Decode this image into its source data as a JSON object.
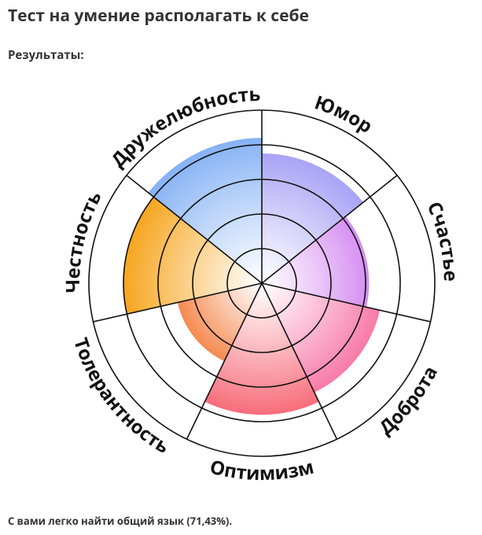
{
  "header": {
    "title": "Тест на умение располагать к себе",
    "subtitle": "Результаты:"
  },
  "chart_data": {
    "type": "polar",
    "categories": [
      "Юмор",
      "Счастье",
      "Доброта",
      "Оптимизм",
      "Толерантность",
      "Честность",
      "Дружелюбность"
    ],
    "values": [
      3.75,
      3.1,
      3.5,
      3.8,
      2.5,
      4,
      4.2
    ],
    "colors": [
      "#a9a3f5",
      "#d68ef2",
      "#f77aa8",
      "#f76d7a",
      "#f5894f",
      "#f7a51e",
      "#86b2f5"
    ],
    "rlim": [
      0,
      5
    ],
    "rticks": [
      1,
      2,
      3,
      4,
      5
    ],
    "grid": true
  },
  "footer": {
    "text": "С вами легко найти общий язык (71,43%)."
  }
}
